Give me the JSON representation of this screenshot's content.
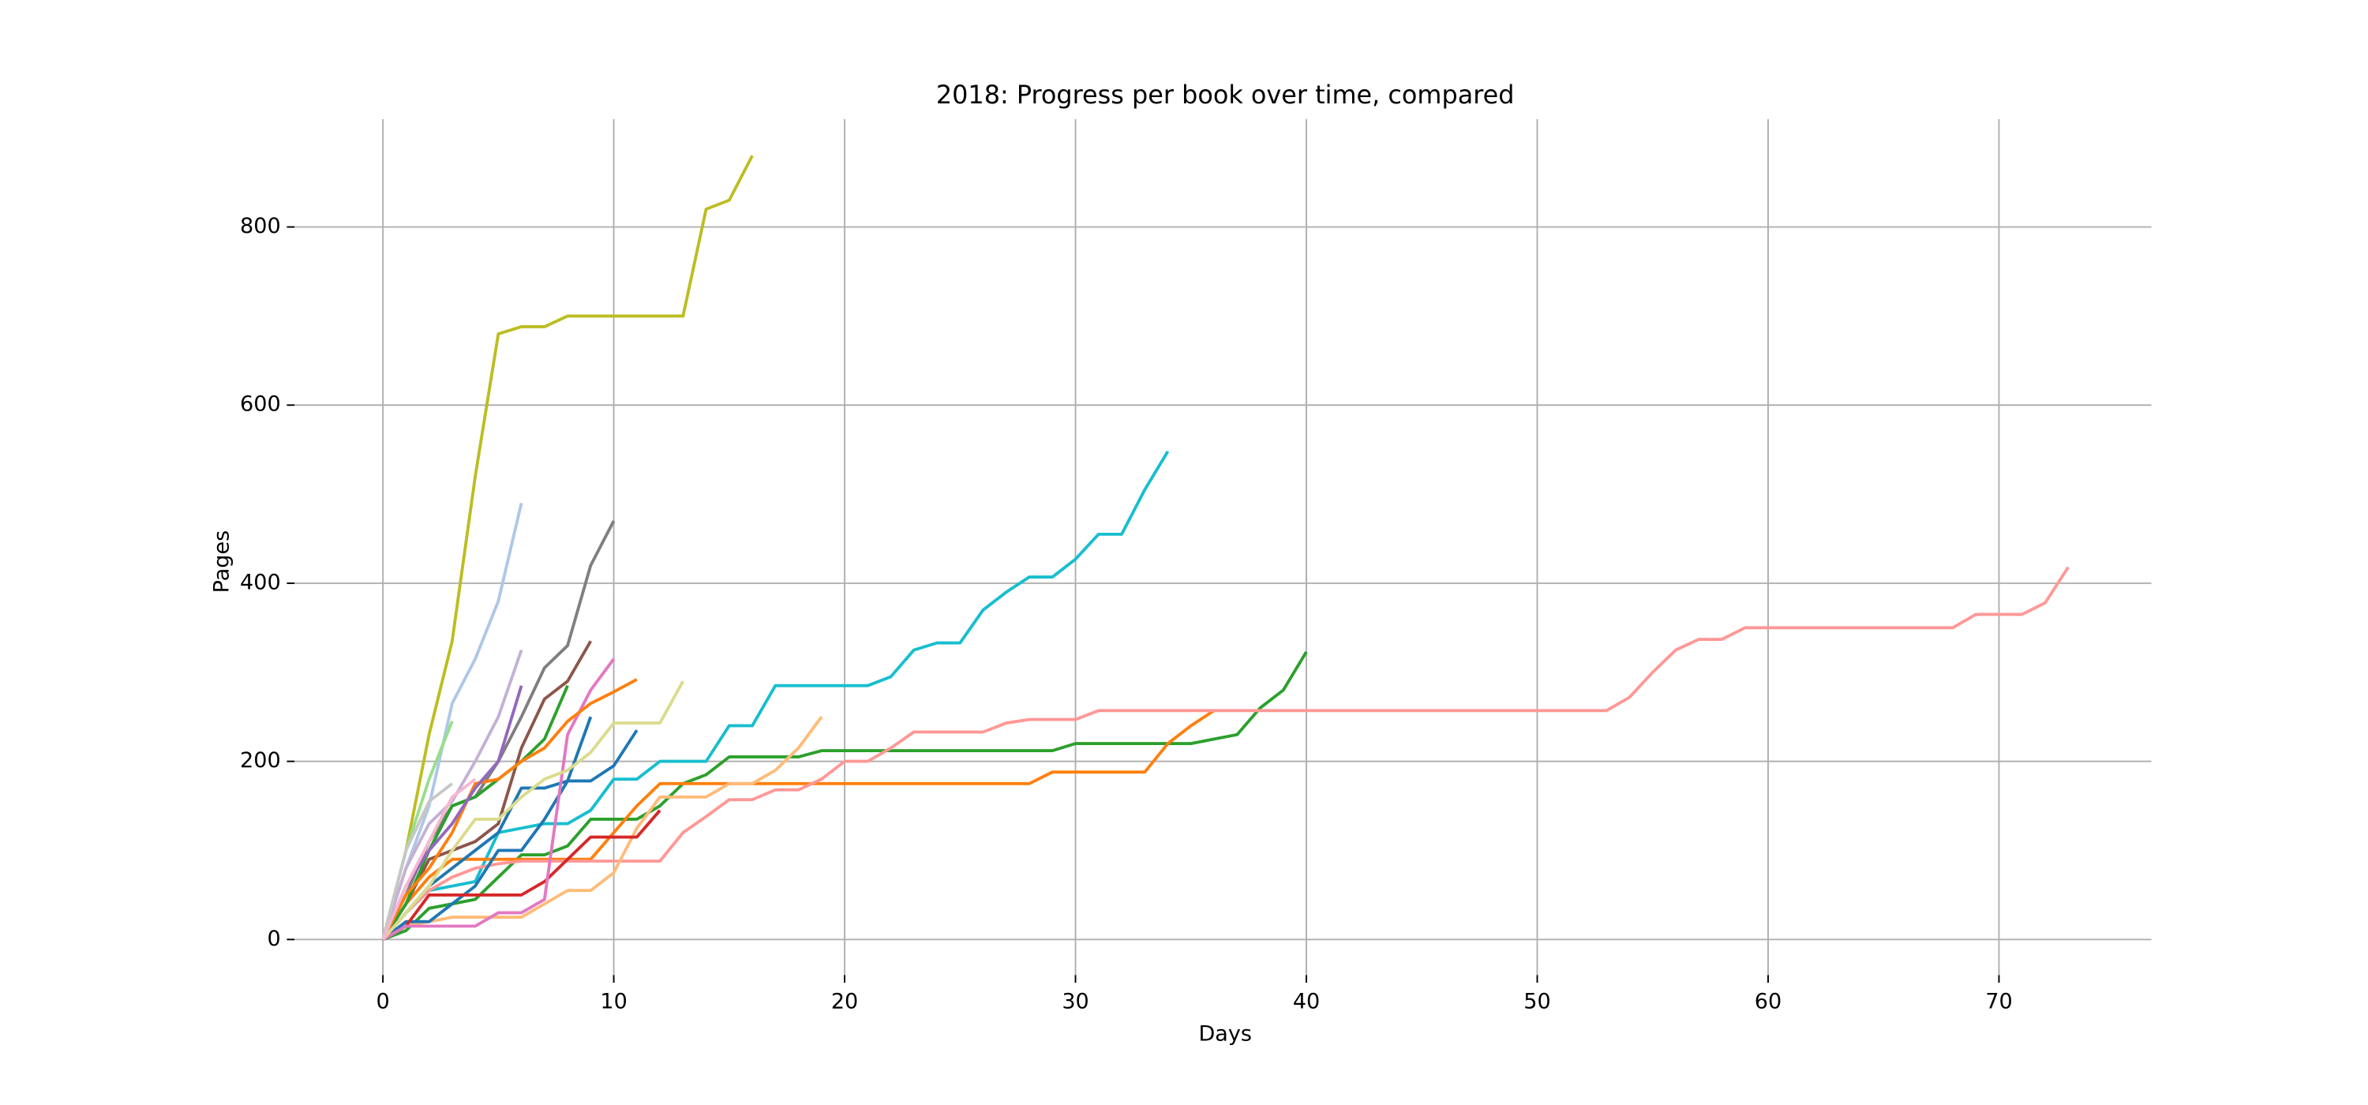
{
  "chart_data": {
    "type": "line",
    "title": "2018: Progress per book over time, compared",
    "xlabel": "Days",
    "ylabel": "Pages",
    "xlim": [
      -3.83,
      76.6
    ],
    "ylim": [
      -40,
      921
    ],
    "xticks": [
      0,
      10,
      20,
      30,
      40,
      50,
      60,
      70
    ],
    "yticks": [
      0,
      200,
      400,
      600,
      800
    ],
    "grid": true,
    "series": [
      {
        "color": "#bcbd22",
        "x": [
          0,
          1,
          2,
          3,
          4,
          5,
          6,
          7,
          8,
          9,
          10,
          11,
          12,
          13,
          14,
          15,
          16
        ],
        "values": [
          0,
          100,
          230,
          335,
          520,
          680,
          688,
          688,
          700,
          700,
          700,
          700,
          700,
          700,
          820,
          830,
          880
        ]
      },
      {
        "color": "#17becf",
        "x": [
          0,
          1,
          2,
          3,
          4,
          5,
          6,
          7,
          8,
          9,
          10,
          11,
          12,
          13,
          14,
          15,
          16,
          17,
          18,
          19,
          20,
          21,
          22,
          23,
          24,
          25,
          26,
          27,
          28,
          29,
          30,
          31,
          32,
          33,
          34
        ],
        "values": [
          0,
          30,
          55,
          60,
          65,
          120,
          125,
          130,
          130,
          145,
          180,
          180,
          200,
          200,
          200,
          240,
          240,
          285,
          285,
          285,
          285,
          285,
          295,
          325,
          333,
          333,
          370,
          390,
          407,
          407,
          427,
          455,
          455,
          505,
          548
        ]
      },
      {
        "color": "#2ca02c",
        "x": [
          0,
          1,
          2,
          3,
          4,
          5,
          6,
          7,
          8,
          9,
          10,
          11,
          12,
          13,
          14,
          15,
          16,
          17,
          18,
          19,
          20,
          21,
          22,
          23,
          24,
          25,
          26,
          27,
          28,
          29,
          30,
          31,
          32,
          33,
          34,
          35,
          36,
          37,
          38,
          39,
          40
        ],
        "values": [
          0,
          10,
          35,
          40,
          45,
          70,
          95,
          95,
          105,
          135,
          135,
          135,
          150,
          175,
          185,
          205,
          205,
          205,
          205,
          212,
          212,
          212,
          212,
          212,
          212,
          212,
          212,
          212,
          212,
          212,
          220,
          220,
          220,
          220,
          220,
          220,
          225,
          230,
          260,
          280,
          323
        ]
      },
      {
        "color": "#ff7f0e",
        "x": [
          0,
          1,
          2,
          3,
          4,
          5,
          6,
          7,
          8,
          9,
          10,
          11,
          12,
          13,
          14,
          15,
          16,
          17,
          18,
          19,
          20,
          21,
          22,
          23,
          24,
          25,
          26,
          27,
          28,
          29,
          30,
          31,
          32,
          33,
          34,
          35,
          36
        ],
        "values": [
          0,
          40,
          70,
          90,
          90,
          90,
          90,
          90,
          90,
          90,
          120,
          150,
          175,
          175,
          175,
          175,
          175,
          175,
          175,
          175,
          175,
          175,
          175,
          175,
          175,
          175,
          175,
          175,
          175,
          188,
          188,
          188,
          188,
          188,
          220,
          240,
          257
        ]
      },
      {
        "color": "#ff9896",
        "x": [
          0,
          1,
          2,
          3,
          4,
          5,
          6,
          7,
          8,
          9,
          10,
          11,
          12,
          13,
          14,
          15,
          16,
          17,
          18,
          19,
          20,
          21,
          22,
          23,
          24,
          25,
          26,
          27,
          28,
          29,
          30,
          31,
          32,
          33,
          34,
          35,
          36,
          37,
          38,
          39,
          40,
          41,
          42,
          43,
          44,
          45,
          46,
          47,
          48,
          49,
          50,
          51,
          52,
          53,
          54,
          55,
          56,
          57,
          58,
          59,
          60,
          61,
          62,
          63,
          64,
          65,
          66,
          67,
          68,
          69,
          70,
          71,
          72,
          73
        ],
        "values": [
          0,
          30,
          55,
          70,
          80,
          85,
          88,
          88,
          88,
          88,
          88,
          88,
          88,
          120,
          138,
          157,
          157,
          168,
          168,
          180,
          200,
          200,
          215,
          233,
          233,
          233,
          233,
          243,
          247,
          247,
          247,
          257,
          257,
          257,
          257,
          257,
          257,
          257,
          257,
          257,
          257,
          257,
          257,
          257,
          257,
          257,
          257,
          257,
          257,
          257,
          257,
          257,
          257,
          257,
          272,
          300,
          325,
          337,
          337,
          350,
          350,
          350,
          350,
          350,
          350,
          350,
          350,
          350,
          350,
          365,
          365,
          365,
          378,
          418
        ]
      },
      {
        "color": "#ffbb78",
        "x": [
          0,
          1,
          2,
          3,
          4,
          5,
          6,
          7,
          8,
          9,
          10,
          11,
          12,
          13,
          14,
          15,
          16,
          17,
          18,
          19
        ],
        "values": [
          0,
          15,
          20,
          25,
          25,
          25,
          25,
          40,
          55,
          55,
          75,
          125,
          160,
          160,
          160,
          175,
          175,
          190,
          215,
          250
        ]
      },
      {
        "color": "#1f77b4",
        "x": [
          0,
          1,
          2,
          3,
          4,
          5,
          6,
          7,
          8,
          9
        ],
        "values": [
          0,
          30,
          60,
          80,
          100,
          120,
          170,
          170,
          178,
          250
        ]
      },
      {
        "color": "#1f77b4",
        "x": [
          0,
          1,
          2,
          3,
          4,
          5,
          6,
          7,
          8,
          9,
          10,
          11
        ],
        "values": [
          0,
          20,
          20,
          40,
          60,
          100,
          100,
          135,
          178,
          178,
          195,
          235
        ]
      },
      {
        "color": "#d62728",
        "x": [
          0,
          1,
          2,
          3,
          4,
          5,
          6,
          7,
          8,
          9,
          10,
          11,
          12
        ],
        "values": [
          0,
          15,
          50,
          50,
          50,
          50,
          50,
          65,
          90,
          115,
          115,
          115,
          145
        ]
      },
      {
        "color": "#7f7f7f",
        "x": [
          0,
          1,
          2,
          3,
          4,
          5,
          6,
          7,
          8,
          9,
          10
        ],
        "values": [
          0,
          50,
          110,
          150,
          160,
          200,
          250,
          305,
          330,
          420,
          470
        ]
      },
      {
        "color": "#aec7e8",
        "x": [
          0,
          1,
          2,
          3,
          4,
          5,
          6
        ],
        "values": [
          0,
          80,
          150,
          265,
          315,
          380,
          490
        ]
      },
      {
        "color": "#8c564b",
        "x": [
          0,
          1,
          2,
          3,
          4,
          5,
          6,
          7,
          8,
          9
        ],
        "values": [
          0,
          40,
          90,
          100,
          110,
          130,
          215,
          270,
          290,
          335
        ]
      },
      {
        "color": "#e377c2",
        "x": [
          0,
          1,
          2,
          3,
          4,
          5,
          6,
          7,
          8,
          9,
          10
        ],
        "values": [
          0,
          15,
          15,
          15,
          15,
          30,
          30,
          45,
          230,
          280,
          315
        ]
      },
      {
        "color": "#98df8a",
        "x": [
          0,
          1,
          2,
          3
        ],
        "values": [
          0,
          100,
          180,
          245
        ]
      },
      {
        "color": "#2ca02c",
        "x": [
          0,
          1,
          2,
          3,
          4,
          5,
          6,
          7,
          8
        ],
        "values": [
          0,
          40,
          100,
          150,
          160,
          180,
          200,
          225,
          285
        ]
      },
      {
        "color": "#ff7f0e",
        "x": [
          0,
          1,
          2,
          3,
          4,
          5,
          6,
          7,
          8,
          9,
          10,
          11
        ],
        "values": [
          0,
          50,
          80,
          120,
          175,
          180,
          200,
          215,
          245,
          265,
          278,
          292
        ]
      },
      {
        "color": "#dbdb8d",
        "x": [
          0,
          1,
          2,
          3,
          4,
          5,
          6,
          7,
          8,
          9,
          10,
          11,
          12,
          13
        ],
        "values": [
          0,
          30,
          60,
          100,
          135,
          135,
          160,
          180,
          190,
          210,
          243,
          243,
          243,
          290
        ]
      },
      {
        "color": "#9467bd",
        "x": [
          0,
          1,
          2,
          3,
          4,
          5,
          6
        ],
        "values": [
          0,
          60,
          100,
          130,
          170,
          200,
          285
        ]
      },
      {
        "color": "#c5b0d5",
        "x": [
          0,
          1,
          2,
          3,
          4,
          5,
          6
        ],
        "values": [
          0,
          80,
          130,
          155,
          200,
          250,
          325
        ]
      },
      {
        "color": "#c7c7c7",
        "x": [
          0,
          1,
          2,
          3
        ],
        "values": [
          0,
          100,
          155,
          175
        ]
      },
      {
        "color": "#f7b6d2",
        "x": [
          0,
          1,
          2,
          3,
          4
        ],
        "values": [
          0,
          60,
          110,
          160,
          180
        ]
      }
    ]
  }
}
